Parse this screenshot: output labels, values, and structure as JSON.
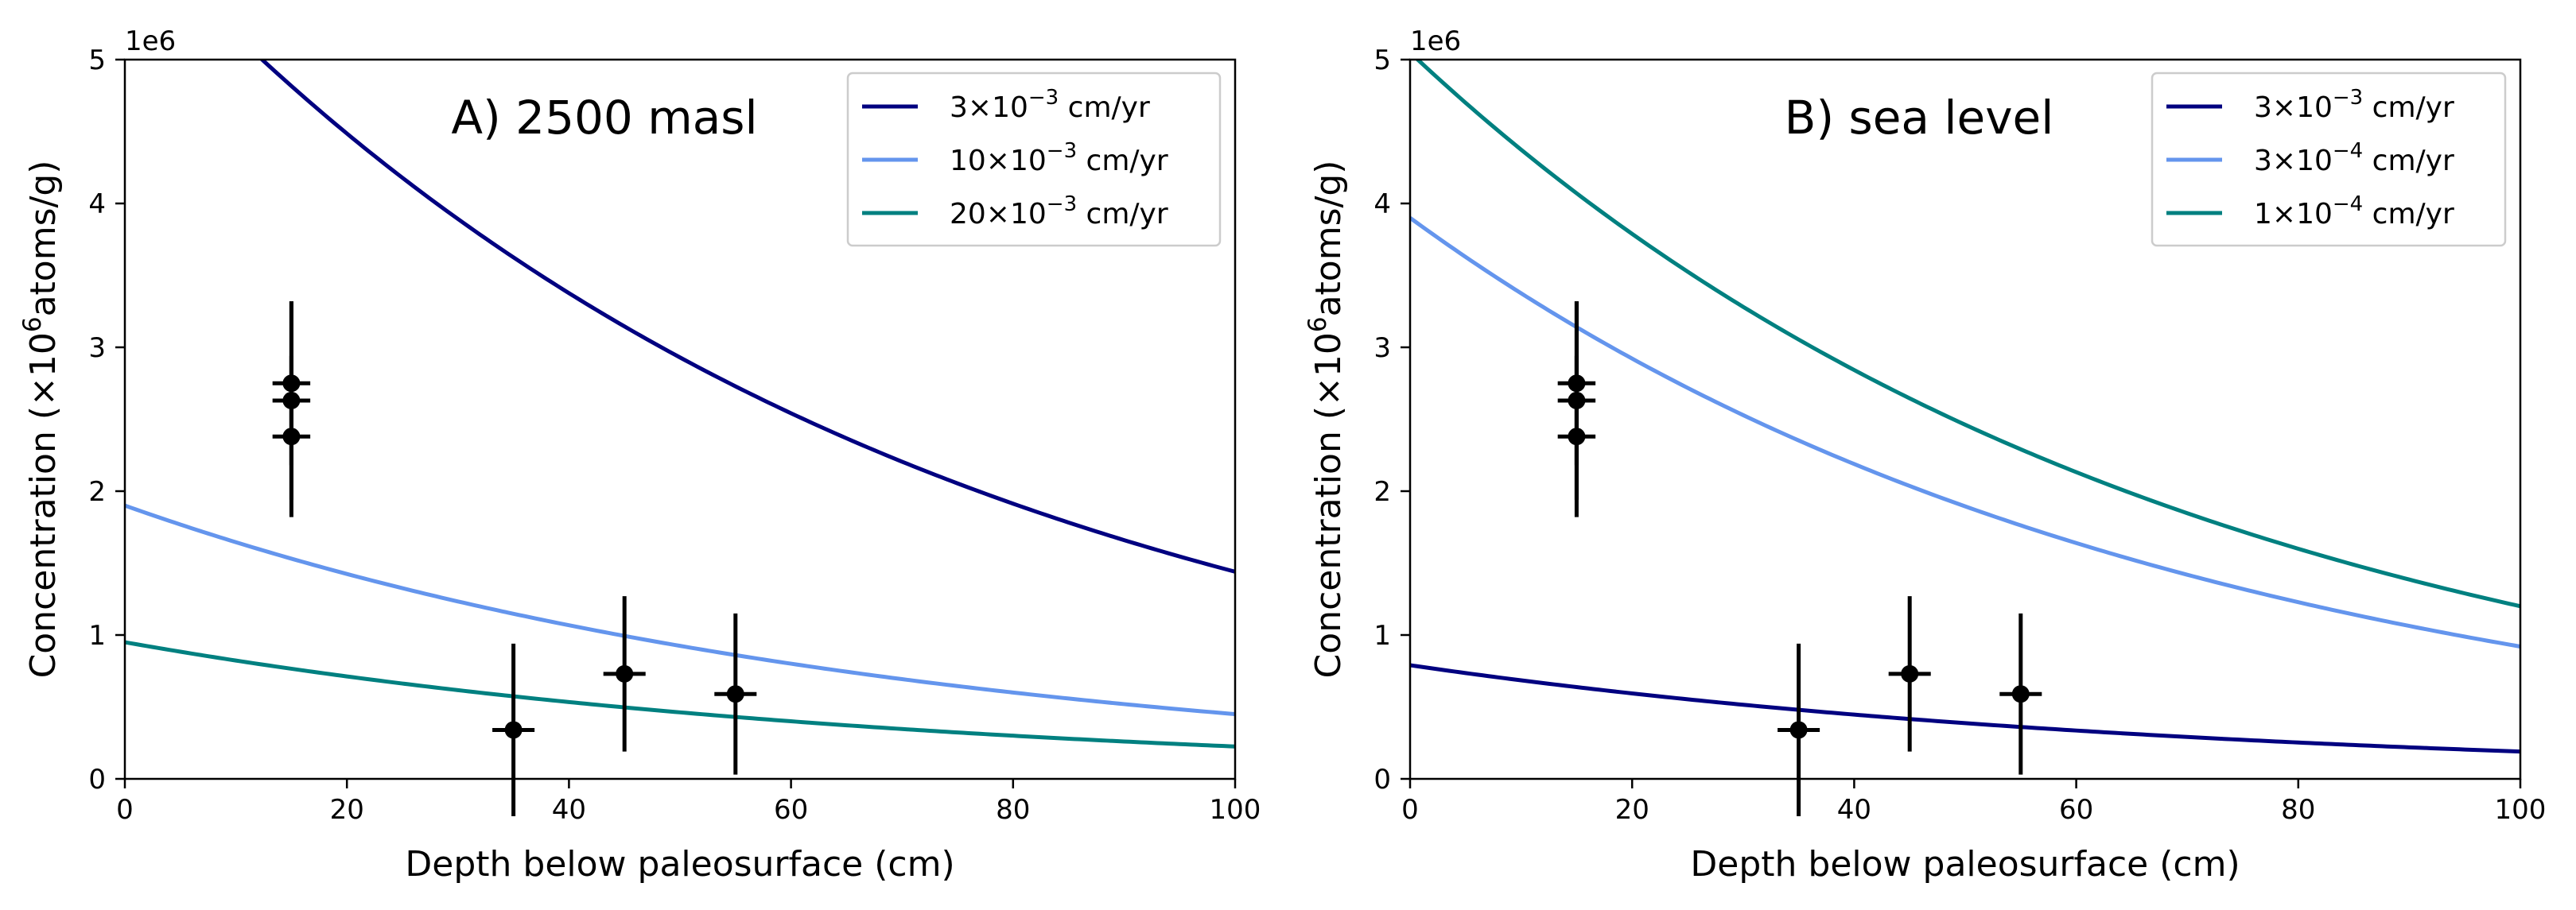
{
  "chart_data": [
    {
      "type": "line",
      "title": "A) 2500 masl",
      "xlabel": "Depth below paleosurface (cm)",
      "ylabel_prefix": "Concentration (×10",
      "ylabel_sup": "6",
      "ylabel_suffix": "atoms/g)",
      "y_offset_label": "1e6",
      "xlim": [
        0,
        100
      ],
      "ylim": [
        0,
        5
      ],
      "xticks": [
        "0",
        "20",
        "40",
        "60",
        "80",
        "100"
      ],
      "yticks": [
        "0",
        "1",
        "2",
        "3",
        "4",
        "5"
      ],
      "grid": false,
      "legend_position": "top-right",
      "series": [
        {
          "name_base": "3×10",
          "name_sup": "−3",
          "name_unit": " cm/yr",
          "color": "#000080",
          "y_at_0": 5.96,
          "y_at_100": 1.44
        },
        {
          "name_base": "10×10",
          "name_sup": "−3",
          "name_unit": " cm/yr",
          "color": "#6495ED",
          "y_at_0": 1.9,
          "y_at_100": 0.45
        },
        {
          "name_base": "20×10",
          "name_sup": "−3",
          "name_unit": " cm/yr",
          "color": "#008080",
          "y_at_0": 0.95,
          "y_at_100": 0.225
        }
      ],
      "points": [
        {
          "x": 15,
          "y": 2.75,
          "yerr": 0.57,
          "xerr": 1.7
        },
        {
          "x": 15,
          "y": 2.63,
          "yerr": 0.69,
          "xerr": 1.7
        },
        {
          "x": 15,
          "y": 2.38,
          "yerr": 0.56,
          "xerr": 1.7
        },
        {
          "x": 35,
          "y": 0.34,
          "yerr": 0.6,
          "xerr": 1.9
        },
        {
          "x": 45,
          "y": 0.73,
          "yerr": 0.54,
          "xerr": 1.9
        },
        {
          "x": 55,
          "y": 0.59,
          "yerr": 0.56,
          "xerr": 1.9
        }
      ]
    },
    {
      "type": "line",
      "title": "B) sea level",
      "xlabel": "Depth below paleosurface (cm)",
      "ylabel_prefix": "Concentration (×10",
      "ylabel_sup": "6",
      "ylabel_suffix": "atoms/g)",
      "y_offset_label": "1e6",
      "xlim": [
        0,
        100
      ],
      "ylim": [
        0,
        5
      ],
      "xticks": [
        "0",
        "20",
        "40",
        "60",
        "80",
        "100"
      ],
      "yticks": [
        "0",
        "1",
        "2",
        "3",
        "4",
        "5"
      ],
      "grid": false,
      "legend_position": "top-right",
      "series": [
        {
          "name_base": "3×10",
          "name_sup": "−3",
          "name_unit": " cm/yr",
          "color": "#000080",
          "y_at_0": 0.79,
          "y_at_100": 0.19
        },
        {
          "name_base": "3×10",
          "name_sup": "−4",
          "name_unit": " cm/yr",
          "color": "#6495ED",
          "y_at_0": 3.9,
          "y_at_100": 0.92
        },
        {
          "name_base": "1×10",
          "name_sup": "−4",
          "name_unit": " cm/yr",
          "color": "#008080",
          "y_at_0": 5.05,
          "y_at_100": 1.2
        }
      ],
      "points": [
        {
          "x": 15,
          "y": 2.75,
          "yerr": 0.57,
          "xerr": 1.7
        },
        {
          "x": 15,
          "y": 2.63,
          "yerr": 0.69,
          "xerr": 1.7
        },
        {
          "x": 15,
          "y": 2.38,
          "yerr": 0.56,
          "xerr": 1.7
        },
        {
          "x": 35,
          "y": 0.34,
          "yerr": 0.6,
          "xerr": 1.9
        },
        {
          "x": 45,
          "y": 0.73,
          "yerr": 0.54,
          "xerr": 1.9
        },
        {
          "x": 55,
          "y": 0.59,
          "yerr": 0.56,
          "xerr": 1.9
        }
      ]
    }
  ]
}
